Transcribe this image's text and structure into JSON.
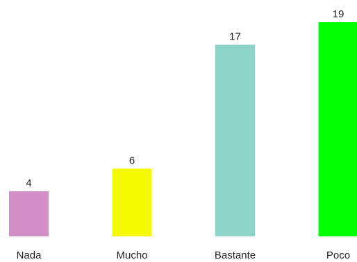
{
  "chart_data": {
    "type": "bar",
    "title": "",
    "xlabel": "",
    "ylabel": "",
    "categories": [
      "Nada",
      "Mucho",
      "Bastante",
      "Poco"
    ],
    "values": [
      4,
      6,
      17,
      19
    ],
    "colors": [
      "#d48fc7",
      "#f5fa00",
      "#8fd4c8",
      "#00ff00"
    ],
    "ylim": [
      0,
      19
    ],
    "grid": false,
    "legend": "none"
  }
}
